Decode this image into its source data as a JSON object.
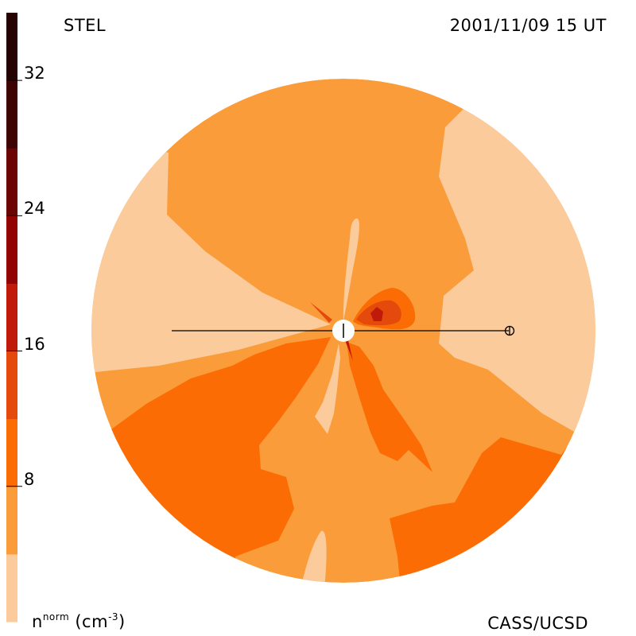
{
  "header": {
    "left_label": "STEL",
    "timestamp": "2001/11/09 15 UT"
  },
  "footer": {
    "credit": "CASS/UCSD",
    "quantity_symbol": "n",
    "quantity_superscript": "norm",
    "unit": "(cm",
    "unit_exponent": "-3",
    "unit_close": ")"
  },
  "colorbar": {
    "min": 0,
    "max": 36,
    "ticks": [
      8,
      16,
      24,
      32
    ],
    "tick_labels": [
      "8",
      "16",
      "24",
      "32"
    ],
    "band_colors": [
      "#fbcb9b",
      "#fb9c3a",
      "#fb6c04",
      "#e34a0c",
      "#c01a0a",
      "#920404",
      "#6c0404",
      "#3e0404",
      "#260202"
    ]
  },
  "chart_data": {
    "type": "heatmap",
    "title": "",
    "xlabel": "",
    "ylabel": "",
    "colorbar_range": [
      0,
      36
    ],
    "colorbar_ticks": [
      8,
      16,
      24,
      32
    ],
    "colorbar_label": "n^norm (cm^-3)",
    "levels": [
      {
        "range": [
          0,
          4
        ],
        "color": "#fbcb9b"
      },
      {
        "range": [
          4,
          8
        ],
        "color": "#fb9c3a"
      },
      {
        "range": [
          8,
          12
        ],
        "color": "#fb6c04"
      },
      {
        "range": [
          12,
          16
        ],
        "color": "#e34a0c"
      },
      {
        "range": [
          16,
          20
        ],
        "color": "#c01a0a"
      },
      {
        "range": [
          20,
          24
        ],
        "color": "#920404"
      },
      {
        "range": [
          24,
          28
        ],
        "color": "#6c0404"
      },
      {
        "range": [
          28,
          32
        ],
        "color": "#3e0404"
      },
      {
        "range": [
          32,
          36
        ],
        "color": "#260202"
      }
    ],
    "markers": [
      {
        "name": "sun",
        "symbol": "circle-with-vertical-bar"
      },
      {
        "name": "earth",
        "symbol": "circle-cross"
      }
    ]
  }
}
